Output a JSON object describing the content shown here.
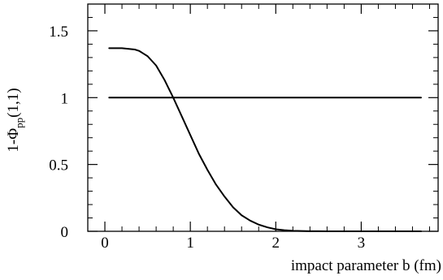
{
  "chart_data": {
    "type": "line",
    "title": "",
    "xlabel": "impact parameter b (fm)",
    "ylabel": {
      "main": "1-Φ",
      "sub": "pp",
      "args": "(1,1)"
    },
    "xlim": [
      -0.2,
      3.9
    ],
    "ylim": [
      0,
      1.7
    ],
    "x_major_ticks": [
      0,
      1,
      2,
      3
    ],
    "x_tick_labels": [
      "0",
      "1",
      "2",
      "3"
    ],
    "y_major_ticks": [
      0,
      0.5,
      1,
      1.5
    ],
    "y_tick_labels": [
      "0",
      "0.5",
      "1",
      "1.5"
    ],
    "grid": false,
    "legend": "none",
    "colors": {
      "line": "#000000",
      "axis": "#000000",
      "background": "#ffffff"
    },
    "series": [
      {
        "x": [
          0.05,
          0.2,
          0.35,
          0.4,
          0.45,
          0.5,
          0.6,
          0.7,
          0.8,
          0.9,
          1.0,
          1.1,
          1.2,
          1.3,
          1.4,
          1.5,
          1.6,
          1.7,
          1.8,
          1.9,
          2.0,
          2.1,
          2.2,
          2.3,
          2.4,
          2.5,
          2.6,
          2.7,
          2.8,
          2.9,
          3.0,
          3.1,
          3.2,
          3.3,
          3.4,
          3.5,
          3.6,
          3.7
        ],
        "y": [
          1.37,
          1.37,
          1.36,
          1.35,
          1.33,
          1.31,
          1.24,
          1.13,
          1.0,
          0.86,
          0.72,
          0.58,
          0.46,
          0.35,
          0.26,
          0.18,
          0.12,
          0.08,
          0.05,
          0.03,
          0.015,
          0.008,
          0.004,
          0.002,
          0.001,
          0.0005,
          0.0002,
          0.0001,
          0.0,
          0.0,
          0.0,
          0.0,
          0.0,
          0.0,
          0.0,
          0.0,
          0.0,
          0.0
        ]
      },
      {
        "x": [
          0.05,
          3.7
        ],
        "y": [
          1.0,
          1.0
        ]
      }
    ]
  }
}
